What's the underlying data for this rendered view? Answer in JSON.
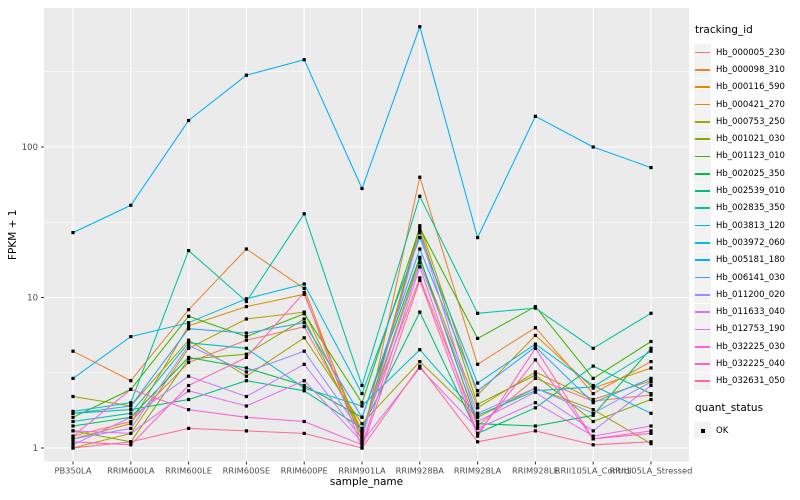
{
  "chart_data": {
    "type": "line",
    "title": "",
    "xlabel": "sample_name",
    "ylabel": "FPKM + 1",
    "y_scale": "log10",
    "y_ticks": [
      1,
      10,
      100
    ],
    "y_minor_ticks": [
      3.162,
      31.623,
      316.23
    ],
    "ylim": [
      0.85,
      900
    ],
    "grid": "on",
    "categories": [
      "PB350LA",
      "RRIM600LA",
      "RRIM600LE",
      "RRIM600SE",
      "RRIM600PE",
      "RRIM901LA",
      "RRIM928BA",
      "RRIM928LA",
      "RRIM928LE",
      "RRII105LA_Control",
      "RRII105LA_Stressed"
    ],
    "series": [
      {
        "name": "Hb_000005_230",
        "color": "#F8766D",
        "values": [
          1.2,
          1.5,
          3.7,
          5.2,
          6.4,
          1.3,
          13.5,
          1.4,
          2.9,
          2.05,
          2.25
        ]
      },
      {
        "name": "Hb_000098_310",
        "color": "#EA8331",
        "values": [
          4.4,
          2.8,
          8.3,
          21,
          11.5,
          1.1,
          63,
          3.6,
          6.3,
          2.3,
          3.75
        ]
      },
      {
        "name": "Hb_000116_590",
        "color": "#D89000",
        "values": [
          1.15,
          1.45,
          6.5,
          8.7,
          10.5,
          1.2,
          30,
          2.25,
          5.6,
          2.5,
          3.4
        ]
      },
      {
        "name": "Hb_000421_270",
        "color": "#C09B00",
        "values": [
          1.0,
          1.25,
          4.6,
          7.2,
          8.0,
          1.3,
          18,
          1.85,
          3.2,
          2.1,
          2.8
        ]
      },
      {
        "name": "Hb_000753_250",
        "color": "#A3A500",
        "values": [
          2.2,
          1.9,
          5.2,
          3.0,
          5.4,
          1.45,
          3.75,
          1.6,
          2.5,
          1.8,
          1.07
        ]
      },
      {
        "name": "Hb_001021_030",
        "color": "#7CAE00",
        "values": [
          1.3,
          1.1,
          3.9,
          4.2,
          7.2,
          1.2,
          28,
          1.95,
          3.05,
          1.5,
          2.1
        ]
      },
      {
        "name": "Hb_001123_010",
        "color": "#39B600",
        "values": [
          1.6,
          2.45,
          7.5,
          5.5,
          7.8,
          2.0,
          29,
          5.35,
          8.7,
          2.9,
          5.1
        ]
      },
      {
        "name": "Hb_002025_350",
        "color": "#00BB4E",
        "values": [
          1.4,
          1.6,
          4.0,
          3.4,
          2.6,
          1.6,
          18.5,
          1.45,
          1.4,
          1.65,
          4.6
        ]
      },
      {
        "name": "Hb_002539_010",
        "color": "#00BF7D",
        "values": [
          1.7,
          1.8,
          2.1,
          2.8,
          2.4,
          1.35,
          8.0,
          1.25,
          1.85,
          3.5,
          2.3
        ]
      },
      {
        "name": "Hb_002835_350",
        "color": "#00C1A3",
        "values": [
          1.75,
          2.0,
          20.5,
          9.4,
          36,
          2.6,
          47,
          7.85,
          8.5,
          4.6,
          7.85
        ]
      },
      {
        "name": "Hb_003813_120",
        "color": "#00BFC4",
        "values": [
          1.5,
          1.7,
          5.0,
          4.6,
          2.5,
          1.9,
          4.5,
          1.65,
          2.4,
          2.55,
          4.4
        ]
      },
      {
        "name": "Hb_003972_060",
        "color": "#00BAE0",
        "values": [
          2.9,
          5.5,
          6.8,
          9.8,
          12.3,
          2.3,
          25,
          2.7,
          4.9,
          2.6,
          1.7
        ]
      },
      {
        "name": "Hb_005181_180",
        "color": "#00B0F6",
        "values": [
          27,
          41,
          150,
          300,
          380,
          53,
          630,
          25,
          160,
          100,
          73
        ]
      },
      {
        "name": "Hb_006141_030",
        "color": "#35A2FF",
        "values": [
          1.7,
          1.9,
          6.2,
          5.8,
          6.8,
          1.6,
          21,
          2.4,
          4.7,
          2.0,
          2.9
        ]
      },
      {
        "name": "Hb_011200_020",
        "color": "#9590FF",
        "values": [
          1.15,
          1.35,
          4.8,
          3.2,
          4.4,
          1.25,
          17,
          1.7,
          2.5,
          1.7,
          2.75
        ]
      },
      {
        "name": "Hb_011633_040",
        "color": "#C77CFF",
        "values": [
          1.05,
          1.6,
          3.0,
          2.2,
          3.6,
          1.15,
          27,
          1.5,
          2.35,
          1.3,
          2.6
        ]
      },
      {
        "name": "Hb_012753_190",
        "color": "#E76BF3",
        "values": [
          1.3,
          1.25,
          2.4,
          1.9,
          2.8,
          1.1,
          3.4,
          1.35,
          2.0,
          1.2,
          1.4
        ]
      },
      {
        "name": "Hb_032225_030",
        "color": "#FA62DB",
        "values": [
          1.2,
          2.45,
          1.8,
          1.6,
          1.5,
          1.05,
          16,
          1.25,
          3.85,
          1.15,
          1.3
        ]
      },
      {
        "name": "Hb_032225_040",
        "color": "#FF62BC",
        "values": [
          1.1,
          1.05,
          2.6,
          4.0,
          10.8,
          1.0,
          13,
          1.2,
          4.6,
          1.15,
          1.25
        ]
      },
      {
        "name": "Hb_032631_050",
        "color": "#FF6A98",
        "values": [
          1.0,
          1.1,
          1.35,
          1.3,
          1.25,
          1.0,
          3.5,
          1.1,
          1.3,
          1.05,
          1.1
        ]
      }
    ],
    "marker": {
      "shape": "square",
      "size": 3.2
    },
    "legend": {
      "title": "tracking_id",
      "position": "right"
    },
    "legend2": {
      "title": "quant_status",
      "items": [
        {
          "label": "OK",
          "marker": "black-square"
        }
      ]
    },
    "colors": {
      "panel_bg": "#EBEBEB",
      "grid": "#FFFFFF",
      "tick_label": "#4D4D4D",
      "tick_mark": "#333333",
      "axis_title": "#000000",
      "marker": "#000000",
      "legend_key_bg": "#F2F2F2"
    }
  }
}
